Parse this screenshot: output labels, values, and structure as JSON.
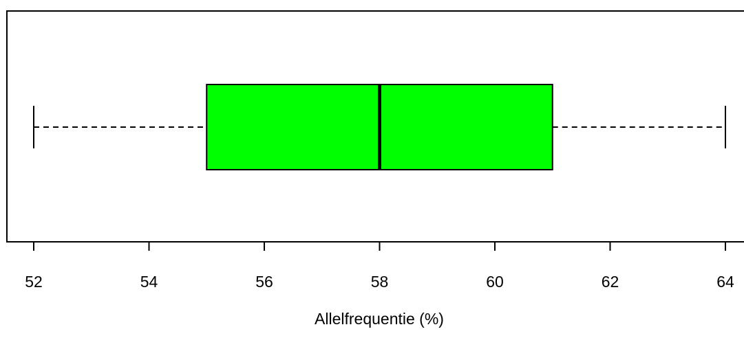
{
  "chart_data": {
    "type": "boxplot",
    "orientation": "horizontal",
    "xlabel": "Allelfrequentie (%)",
    "xlim": [
      52,
      64
    ],
    "ticks": [
      52,
      54,
      56,
      58,
      60,
      62,
      64
    ],
    "tick_labels": [
      "52",
      "54",
      "56",
      "58",
      "60",
      "62",
      "64"
    ],
    "box": {
      "min": 52,
      "q1": 55,
      "median": 58,
      "q3": 61,
      "max": 64
    },
    "box_color": "#00ff00",
    "grid": false
  }
}
